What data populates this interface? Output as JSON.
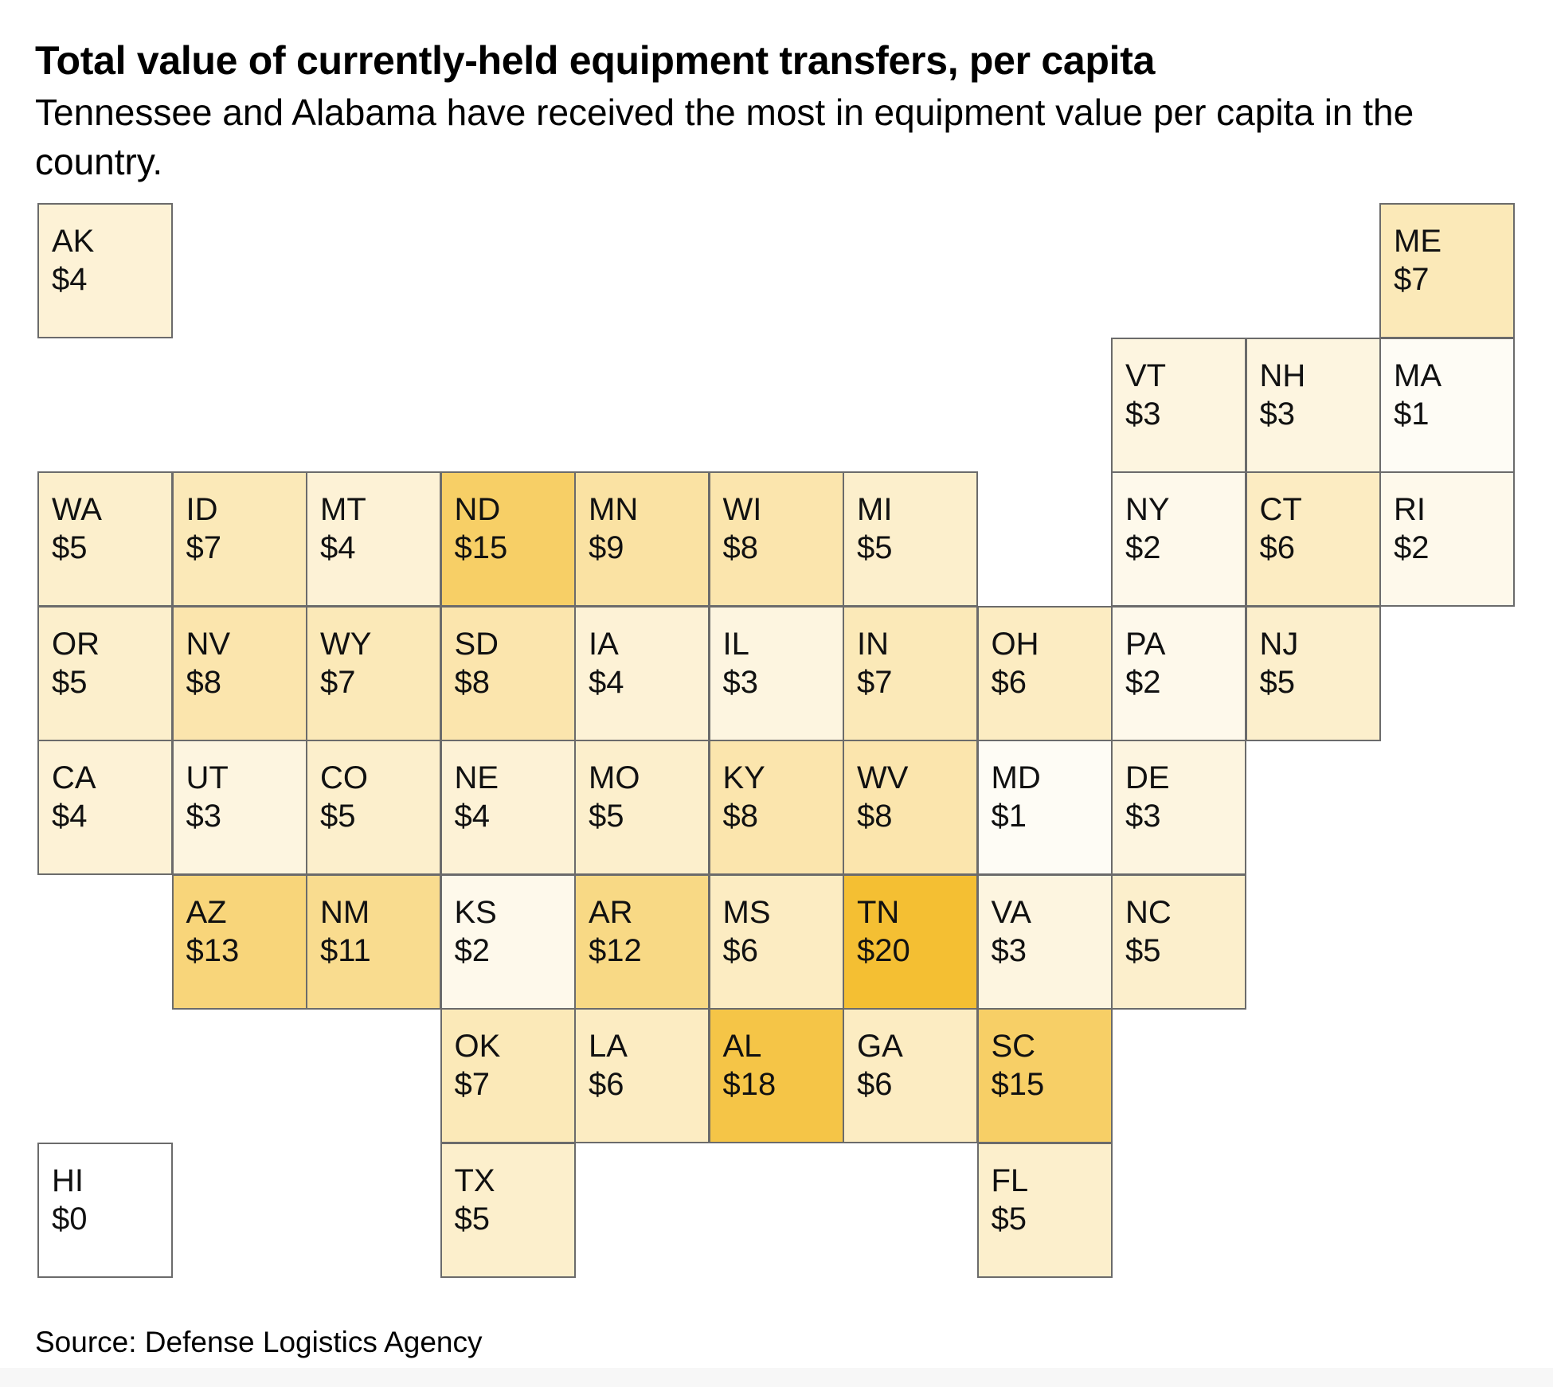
{
  "title": "Total value of currently-held equipment transfers, per capita",
  "subtitle": "Tennessee and Alabama have received the most in equipment value per capita in the country.",
  "source": "Source: Defense Logistics Agency",
  "colors": {
    "low": "#ffffff",
    "high": "#f4bf33",
    "border": "#6b6b6b"
  },
  "scale_max": 20,
  "states": [
    {
      "code": "AK",
      "label": "$4",
      "value": 4,
      "row": 0,
      "col": 0
    },
    {
      "code": "ME",
      "label": "$7",
      "value": 7,
      "row": 0,
      "col": 10
    },
    {
      "code": "VT",
      "label": "$3",
      "value": 3,
      "row": 1,
      "col": 8
    },
    {
      "code": "NH",
      "label": "$3",
      "value": 3,
      "row": 1,
      "col": 9
    },
    {
      "code": "MA",
      "label": "$1",
      "value": 1,
      "row": 1,
      "col": 10
    },
    {
      "code": "WA",
      "label": "$5",
      "value": 5,
      "row": 2,
      "col": 0
    },
    {
      "code": "ID",
      "label": "$7",
      "value": 7,
      "row": 2,
      "col": 1
    },
    {
      "code": "MT",
      "label": "$4",
      "value": 4,
      "row": 2,
      "col": 2
    },
    {
      "code": "ND",
      "label": "$15",
      "value": 15,
      "row": 2,
      "col": 3
    },
    {
      "code": "MN",
      "label": "$9",
      "value": 9,
      "row": 2,
      "col": 4
    },
    {
      "code": "WI",
      "label": "$8",
      "value": 8,
      "row": 2,
      "col": 5
    },
    {
      "code": "MI",
      "label": "$5",
      "value": 5,
      "row": 2,
      "col": 6
    },
    {
      "code": "NY",
      "label": "$2",
      "value": 2,
      "row": 2,
      "col": 8
    },
    {
      "code": "CT",
      "label": "$6",
      "value": 6,
      "row": 2,
      "col": 9
    },
    {
      "code": "RI",
      "label": "$2",
      "value": 2,
      "row": 2,
      "col": 10
    },
    {
      "code": "OR",
      "label": "$5",
      "value": 5,
      "row": 3,
      "col": 0
    },
    {
      "code": "NV",
      "label": "$8",
      "value": 8,
      "row": 3,
      "col": 1
    },
    {
      "code": "WY",
      "label": "$7",
      "value": 7,
      "row": 3,
      "col": 2
    },
    {
      "code": "SD",
      "label": "$8",
      "value": 8,
      "row": 3,
      "col": 3
    },
    {
      "code": "IA",
      "label": "$4",
      "value": 4,
      "row": 3,
      "col": 4
    },
    {
      "code": "IL",
      "label": "$3",
      "value": 3,
      "row": 3,
      "col": 5
    },
    {
      "code": "IN",
      "label": "$7",
      "value": 7,
      "row": 3,
      "col": 6
    },
    {
      "code": "OH",
      "label": "$6",
      "value": 6,
      "row": 3,
      "col": 7
    },
    {
      "code": "PA",
      "label": "$2",
      "value": 2,
      "row": 3,
      "col": 8
    },
    {
      "code": "NJ",
      "label": "$5",
      "value": 5,
      "row": 3,
      "col": 9
    },
    {
      "code": "CA",
      "label": "$4",
      "value": 4,
      "row": 4,
      "col": 0
    },
    {
      "code": "UT",
      "label": "$3",
      "value": 3,
      "row": 4,
      "col": 1
    },
    {
      "code": "CO",
      "label": "$5",
      "value": 5,
      "row": 4,
      "col": 2
    },
    {
      "code": "NE",
      "label": "$4",
      "value": 4,
      "row": 4,
      "col": 3
    },
    {
      "code": "MO",
      "label": "$5",
      "value": 5,
      "row": 4,
      "col": 4
    },
    {
      "code": "KY",
      "label": "$8",
      "value": 8,
      "row": 4,
      "col": 5
    },
    {
      "code": "WV",
      "label": "$8",
      "value": 8,
      "row": 4,
      "col": 6
    },
    {
      "code": "MD",
      "label": "$1",
      "value": 1,
      "row": 4,
      "col": 7
    },
    {
      "code": "DE",
      "label": "$3",
      "value": 3,
      "row": 4,
      "col": 8
    },
    {
      "code": "AZ",
      "label": "$13",
      "value": 13,
      "row": 5,
      "col": 1
    },
    {
      "code": "NM",
      "label": "$11",
      "value": 11,
      "row": 5,
      "col": 2
    },
    {
      "code": "KS",
      "label": "$2",
      "value": 2,
      "row": 5,
      "col": 3
    },
    {
      "code": "AR",
      "label": "$12",
      "value": 12,
      "row": 5,
      "col": 4
    },
    {
      "code": "MS",
      "label": "$6",
      "value": 6,
      "row": 5,
      "col": 5
    },
    {
      "code": "TN",
      "label": "$20",
      "value": 20,
      "row": 5,
      "col": 6
    },
    {
      "code": "VA",
      "label": "$3",
      "value": 3,
      "row": 5,
      "col": 7
    },
    {
      "code": "NC",
      "label": "$5",
      "value": 5,
      "row": 5,
      "col": 8
    },
    {
      "code": "OK",
      "label": "$7",
      "value": 7,
      "row": 6,
      "col": 3
    },
    {
      "code": "LA",
      "label": "$6",
      "value": 6,
      "row": 6,
      "col": 4
    },
    {
      "code": "AL",
      "label": "$18",
      "value": 18,
      "row": 6,
      "col": 5
    },
    {
      "code": "GA",
      "label": "$6",
      "value": 6,
      "row": 6,
      "col": 6
    },
    {
      "code": "SC",
      "label": "$15",
      "value": 15,
      "row": 6,
      "col": 7
    },
    {
      "code": "HI",
      "label": "$0",
      "value": 0,
      "row": 7,
      "col": 0
    },
    {
      "code": "TX",
      "label": "$5",
      "value": 5,
      "row": 7,
      "col": 3
    },
    {
      "code": "FL",
      "label": "$5",
      "value": 5,
      "row": 7,
      "col": 7
    }
  ]
}
